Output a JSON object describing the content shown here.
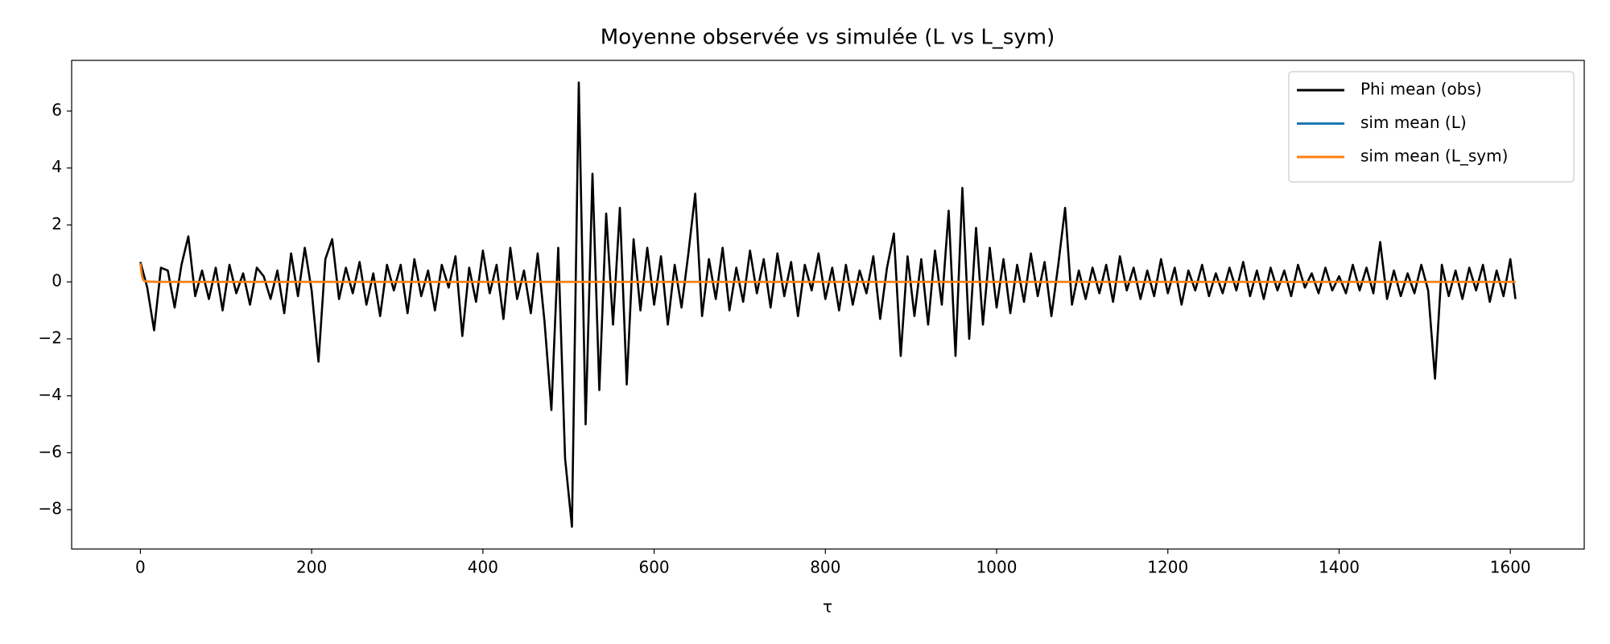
{
  "chart_data": {
    "type": "line",
    "title": "Moyenne observée vs simulée (L vs L_sym)",
    "x_label": "τ",
    "xlim": [
      -80.3,
      1686.3
    ],
    "ylim": [
      -9.38,
      7.78
    ],
    "xticks": [
      0,
      200,
      400,
      600,
      800,
      1000,
      1200,
      1400,
      1600
    ],
    "yticks": [
      {
        "value": -8,
        "label": "−8"
      },
      {
        "value": -6,
        "label": "−6"
      },
      {
        "value": -4,
        "label": "−4"
      },
      {
        "value": -2,
        "label": "−2"
      },
      0,
      2,
      4,
      6
    ],
    "legend": "upper right",
    "series": [
      {
        "name": "Phi mean (obs)",
        "color": "#000000",
        "x": [
          0,
          8,
          16,
          24,
          32,
          40,
          48,
          56,
          64,
          72,
          80,
          88,
          96,
          104,
          112,
          120,
          128,
          136,
          144,
          152,
          160,
          168,
          176,
          184,
          192,
          200,
          208,
          216,
          224,
          232,
          240,
          248,
          256,
          264,
          272,
          280,
          288,
          296,
          304,
          312,
          320,
          328,
          336,
          344,
          352,
          360,
          368,
          376,
          384,
          392,
          400,
          408,
          416,
          424,
          432,
          440,
          448,
          456,
          464,
          472,
          480,
          488,
          496,
          504,
          512,
          520,
          528,
          536,
          544,
          552,
          560,
          568,
          576,
          584,
          592,
          600,
          608,
          616,
          624,
          632,
          640,
          648,
          656,
          664,
          672,
          680,
          688,
          696,
          704,
          712,
          720,
          728,
          736,
          744,
          752,
          760,
          768,
          776,
          784,
          792,
          800,
          808,
          816,
          824,
          832,
          840,
          848,
          856,
          864,
          872,
          880,
          888,
          896,
          904,
          912,
          920,
          928,
          936,
          944,
          952,
          960,
          968,
          976,
          984,
          992,
          1000,
          1008,
          1016,
          1024,
          1032,
          1040,
          1048,
          1056,
          1064,
          1072,
          1080,
          1088,
          1096,
          1104,
          1112,
          1120,
          1128,
          1136,
          1144,
          1152,
          1160,
          1168,
          1176,
          1184,
          1192,
          1200,
          1208,
          1216,
          1224,
          1232,
          1240,
          1248,
          1256,
          1264,
          1272,
          1280,
          1288,
          1296,
          1304,
          1312,
          1320,
          1328,
          1336,
          1344,
          1352,
          1360,
          1368,
          1376,
          1384,
          1392,
          1400,
          1408,
          1416,
          1424,
          1432,
          1440,
          1448,
          1456,
          1464,
          1472,
          1480,
          1488,
          1496,
          1504,
          1512,
          1520,
          1528,
          1536,
          1544,
          1552,
          1560,
          1568,
          1576,
          1584,
          1592,
          1600,
          1606
        ],
        "values": [
          0.7,
          -0.2,
          -1.7,
          0.5,
          0.4,
          -0.9,
          0.6,
          1.6,
          -0.5,
          0.4,
          -0.6,
          0.5,
          -1.0,
          0.6,
          -0.4,
          0.3,
          -0.8,
          0.5,
          0.2,
          -0.6,
          0.4,
          -1.1,
          1.0,
          -0.5,
          1.2,
          -0.3,
          -2.8,
          0.8,
          1.5,
          -0.6,
          0.5,
          -0.4,
          0.7,
          -0.8,
          0.3,
          -1.2,
          0.6,
          -0.3,
          0.6,
          -1.1,
          0.8,
          -0.5,
          0.4,
          -1.0,
          0.6,
          -0.2,
          0.9,
          -1.9,
          0.5,
          -0.7,
          1.1,
          -0.4,
          0.6,
          -1.3,
          1.2,
          -0.6,
          0.4,
          -1.1,
          1.0,
          -1.4,
          -4.5,
          1.2,
          -6.2,
          -8.6,
          7.0,
          -5.0,
          3.8,
          -3.8,
          2.4,
          -1.5,
          2.6,
          -3.6,
          1.5,
          -1.0,
          1.2,
          -0.8,
          0.9,
          -1.5,
          0.6,
          -0.9,
          1.0,
          3.1,
          -1.2,
          0.8,
          -0.6,
          1.2,
          -1.0,
          0.5,
          -0.7,
          1.1,
          -0.4,
          0.8,
          -0.9,
          1.0,
          -0.5,
          0.7,
          -1.2,
          0.6,
          -0.3,
          1.0,
          -0.6,
          0.5,
          -1.0,
          0.6,
          -0.8,
          0.4,
          -0.4,
          0.9,
          -1.3,
          0.5,
          1.7,
          -2.6,
          0.9,
          -1.2,
          0.8,
          -1.5,
          1.1,
          -0.8,
          2.5,
          -2.6,
          3.3,
          -2.0,
          1.9,
          -1.5,
          1.2,
          -0.9,
          0.8,
          -1.1,
          0.6,
          -0.7,
          1.0,
          -0.5,
          0.7,
          -1.2,
          0.6,
          2.6,
          -0.8,
          0.4,
          -0.6,
          0.5,
          -0.4,
          0.6,
          -0.7,
          0.9,
          -0.3,
          0.5,
          -0.6,
          0.4,
          -0.5,
          0.8,
          -0.4,
          0.5,
          -0.8,
          0.4,
          -0.3,
          0.6,
          -0.5,
          0.3,
          -0.4,
          0.5,
          -0.3,
          0.7,
          -0.5,
          0.4,
          -0.6,
          0.5,
          -0.3,
          0.4,
          -0.5,
          0.6,
          -0.2,
          0.3,
          -0.4,
          0.5,
          -0.3,
          0.2,
          -0.4,
          0.6,
          -0.3,
          0.5,
          -0.4,
          1.4,
          -0.6,
          0.4,
          -0.5,
          0.3,
          -0.4,
          0.6,
          -0.3,
          -3.4,
          0.6,
          -0.5,
          0.4,
          -0.6,
          0.5,
          -0.3,
          0.6,
          -0.7,
          0.4,
          -0.5,
          0.8,
          -0.6
        ]
      },
      {
        "name": "sim mean (L)",
        "color": "#1f77b4",
        "x": [
          0,
          1,
          2,
          3,
          4,
          6,
          10,
          20,
          1606
        ],
        "values": [
          0.65,
          0.4,
          0.2,
          0.1,
          0.05,
          0.02,
          0.01,
          0,
          0
        ]
      },
      {
        "name": "sim mean (L_sym)",
        "color": "#ff7f0e",
        "x": [
          0,
          1,
          2,
          3,
          4,
          6,
          10,
          20,
          1606
        ],
        "values": [
          0.65,
          0.4,
          0.2,
          0.1,
          0.05,
          0.02,
          0.01,
          0,
          0
        ]
      }
    ]
  }
}
